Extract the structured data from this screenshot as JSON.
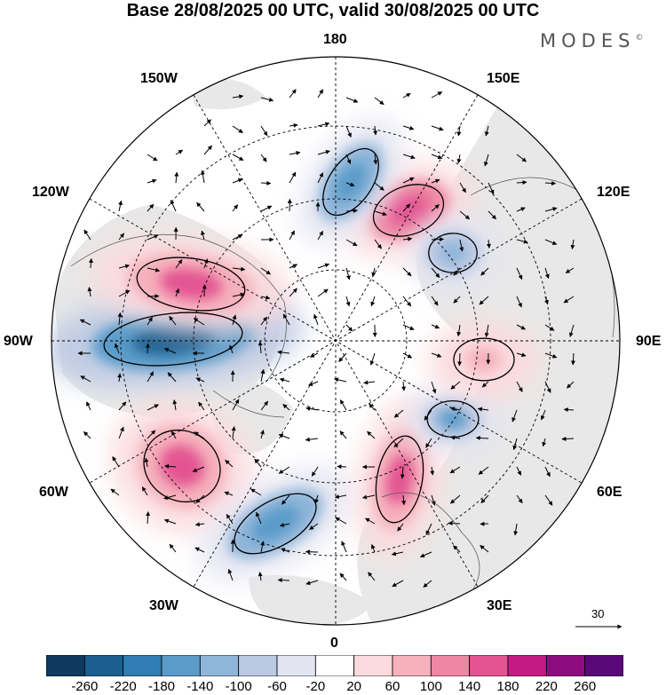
{
  "title": "Base 28/08/2025 00 UTC, valid 30/08/2025 00 UTC",
  "brand": "MODES",
  "brand_mark": "©",
  "longitude_labels": {
    "top": "180",
    "bottom": "0",
    "left": "90W",
    "right": "90E",
    "upper_left": "150W",
    "upper_left2": "120W",
    "upper_right": "150E",
    "upper_right2": "120E",
    "lower_left": "60W",
    "lower_left2": "30W",
    "lower_right": "60E",
    "lower_right2": "30E"
  },
  "vector_scale": {
    "label": "30"
  },
  "colorbar": {
    "ticks": [
      "-260",
      "-220",
      "-180",
      "-140",
      "-100",
      "-60",
      "-20",
      "20",
      "60",
      "100",
      "140",
      "180",
      "220",
      "260"
    ],
    "colors": [
      "#0d3a5e",
      "#1a5f8f",
      "#2f7db3",
      "#5a9bc9",
      "#8fb5d9",
      "#bcc9e3",
      "#e3e4f1",
      "#ffffff",
      "#fbdade",
      "#f6b1bc",
      "#ef86a2",
      "#e35591",
      "#c51a86",
      "#8f0c7e",
      "#5a0a78"
    ]
  },
  "anomaly_features": [
    {
      "name": "blue-low-90w",
      "value": -240
    },
    {
      "name": "pink-high-100w",
      "value": 160
    },
    {
      "name": "pink-high-135e",
      "value": 170
    },
    {
      "name": "blue-low-170e",
      "value": -180
    },
    {
      "name": "pink-high-55w",
      "value": 150
    },
    {
      "name": "blue-low-25w",
      "value": -170
    },
    {
      "name": "pink-high-15e",
      "value": 160
    },
    {
      "name": "blue-low-45e",
      "value": -160
    },
    {
      "name": "blue-low-110e",
      "value": -130
    },
    {
      "name": "pink-high-75e",
      "value": 90
    }
  ]
}
